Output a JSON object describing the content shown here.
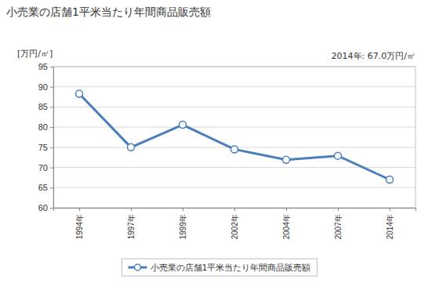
{
  "chart_data": {
    "type": "line",
    "title": "小売業の店舗1平米当たり年間商品販売額",
    "ylabel": "[万円/㎡]",
    "annotation": "2014年: 67.0万円/㎡",
    "categories": [
      "1994年",
      "1997年",
      "1999年",
      "2002年",
      "2004年",
      "2007年",
      "2014年"
    ],
    "series": [
      {
        "name": "小売業の店舗1平米当たり年間商品販売額",
        "color": "#4a7ebb",
        "values": [
          88.3,
          75.0,
          80.6,
          74.5,
          71.9,
          72.9,
          67.0
        ],
        "marker": "circle",
        "line_style": "solid"
      }
    ],
    "ylim": [
      60,
      95
    ],
    "yticks": [
      60,
      65,
      70,
      75,
      80,
      85,
      90,
      95
    ],
    "grid": true,
    "legend": "bottom"
  }
}
